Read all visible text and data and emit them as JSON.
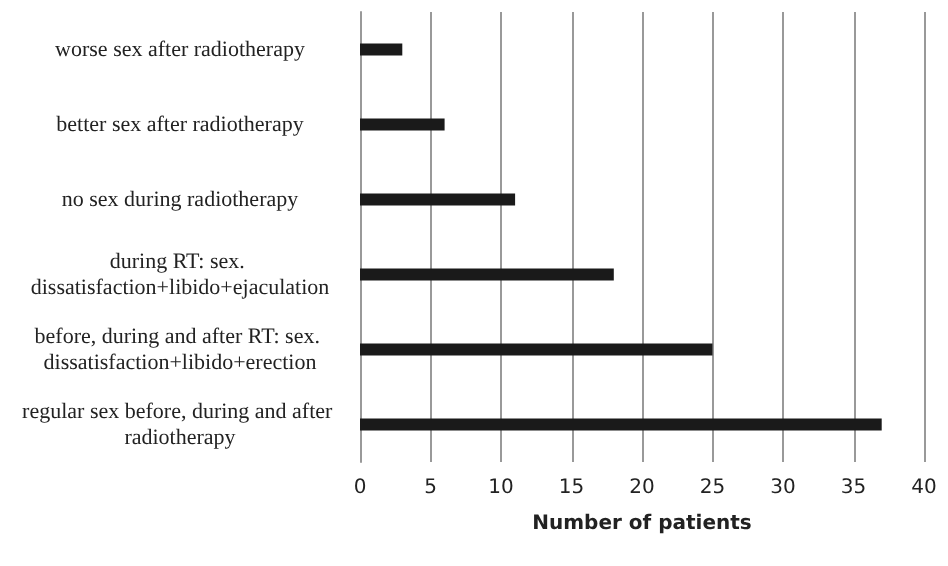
{
  "chart_data": {
    "type": "bar",
    "orientation": "horizontal",
    "xlabel": "Number of patients",
    "categories": [
      "worse sex after radiotherapy",
      "better sex after radiotherapy",
      "no sex during radiotherapy",
      "during RT: sex. dissatisfaction+libido+ejaculation",
      "before, during and after RT: sex. dissatisfaction+libido+erection",
      "regular sex before, during and after radiotherapy"
    ],
    "values": [
      3,
      6,
      11,
      18,
      25,
      37
    ],
    "color": "#1a1a1a",
    "xlim": [
      0,
      40
    ],
    "xticks": [
      0,
      5,
      10,
      15,
      20,
      25,
      30,
      35,
      40
    ],
    "grid": "x"
  }
}
